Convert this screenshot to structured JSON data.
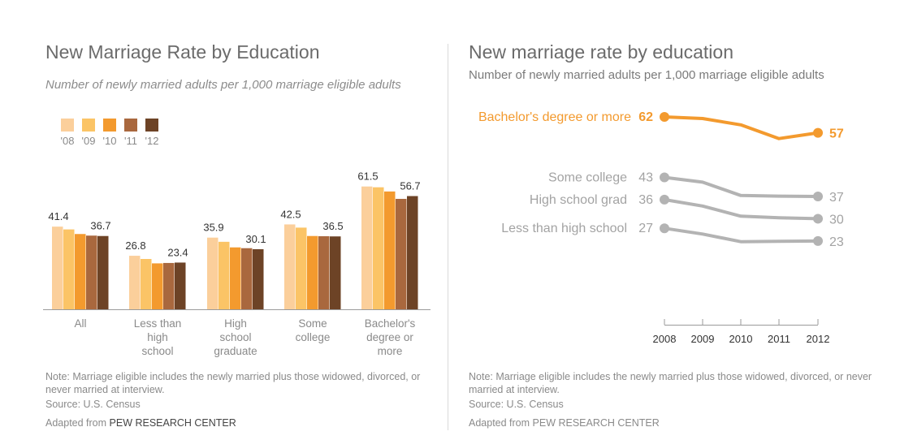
{
  "left": {
    "title": "New Marriage Rate by Education",
    "subtitle": "Number of newly married adults per 1,000 marriage eligible adults",
    "note": "Note: Marriage eligible includes the newly married plus those widowed, divorced, or never married at interview.",
    "source": "Source: U.S. Census",
    "adapted_prefix": "Adapted from ",
    "adapted_org": "PEW RESEARCH CENTER"
  },
  "right": {
    "title": "New marriage rate by education",
    "subtitle": "Number of newly married adults per 1,000 marriage eligible adults",
    "note": "Note: Marriage eligible includes the newly married plus those widowed, divorced, or never married at interview.",
    "source": "Source: U.S. Census",
    "adapted": "Adapted from PEW RESEARCH CENTER"
  },
  "chart_data": [
    {
      "type": "bar",
      "title": "New Marriage Rate by Education",
      "ylabel": "Number of newly married adults per 1,000 marriage eligible adults",
      "ylim": [
        0,
        70
      ],
      "legend_position": "top-left",
      "series_names": [
        "'08",
        "'09",
        "'10",
        "'11",
        "'12"
      ],
      "colors": [
        "#fbcf9b",
        "#fbc466",
        "#f39a2e",
        "#a9683e",
        "#6d4326"
      ],
      "categories": [
        {
          "label": [
            "All"
          ],
          "values": [
            41.4,
            40.0,
            37.7,
            36.9,
            36.7
          ],
          "label_first": "41.4",
          "label_last": "36.7"
        },
        {
          "label": [
            "Less than",
            "high",
            "school"
          ],
          "values": [
            26.8,
            25.2,
            23.0,
            23.2,
            23.4
          ],
          "label_first": "26.8",
          "label_last": "23.4"
        },
        {
          "label": [
            "High",
            "school",
            "graduate"
          ],
          "values": [
            35.9,
            33.8,
            31.0,
            30.6,
            30.1
          ],
          "label_first": "35.9",
          "label_last": "30.1"
        },
        {
          "label": [
            "Some",
            "college"
          ],
          "values": [
            42.5,
            40.9,
            36.7,
            36.6,
            36.5
          ],
          "label_first": "42.5",
          "label_last": "36.5"
        },
        {
          "label": [
            "Bachelor's",
            "degree or",
            "more"
          ],
          "values": [
            61.5,
            61.1,
            59.0,
            55.3,
            56.7
          ],
          "label_first": "61.5",
          "label_last": "56.7"
        }
      ]
    },
    {
      "type": "line",
      "title": "New marriage rate by education",
      "x": [
        2008,
        2009,
        2010,
        2011,
        2012
      ],
      "x_tick_labels": [
        "2008",
        "2009",
        "2010",
        "2011",
        "2012"
      ],
      "ylim": [
        20,
        64
      ],
      "series": [
        {
          "name": "Bachelor's degree or more",
          "values": [
            62,
            61.5,
            59.5,
            55.2,
            57
          ],
          "start_label": "62",
          "end_label": "57",
          "color": "#f39a2e",
          "highlight": true
        },
        {
          "name": "Some college",
          "values": [
            43,
            41.5,
            37.3,
            37.1,
            37
          ],
          "start_label": "43",
          "end_label": "37",
          "color": "#b3b3b3",
          "highlight": false
        },
        {
          "name": "High school grad",
          "values": [
            36,
            34,
            30.8,
            30.3,
            30
          ],
          "start_label": "36",
          "end_label": "30",
          "color": "#b3b3b3",
          "highlight": false
        },
        {
          "name": "Less than high school",
          "values": [
            27,
            25.2,
            22.8,
            22.9,
            23
          ],
          "start_label": "27",
          "end_label": "23",
          "color": "#b3b3b3",
          "highlight": false
        }
      ]
    }
  ]
}
